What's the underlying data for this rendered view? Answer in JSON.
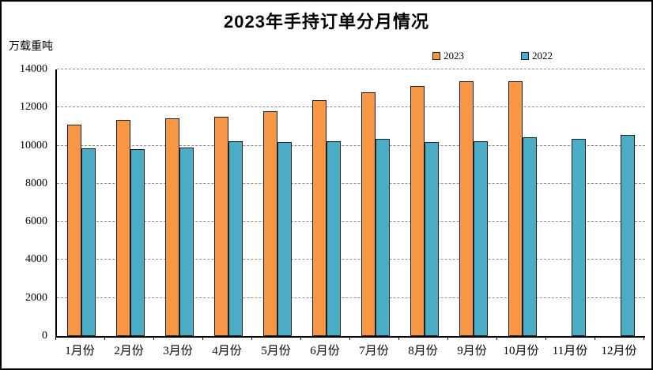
{
  "chart_data": {
    "type": "bar",
    "title": "2023年手持订单分月情况",
    "xlabel": "",
    "ylabel": "万载重吨",
    "ylim": [
      0,
      14000
    ],
    "ytick_interval": 2000,
    "grid": true,
    "legend_position": "top-right-inside",
    "categories": [
      "1月份",
      "2月份",
      "3月份",
      "4月份",
      "5月份",
      "6月份",
      "7月份",
      "8月份",
      "9月份",
      "10月份",
      "11月份",
      "12月份"
    ],
    "series": [
      {
        "name": "2023",
        "color": "#F79646",
        "values": [
          11100,
          11350,
          11450,
          11500,
          11800,
          12400,
          12800,
          13150,
          13400,
          13400,
          null,
          null
        ]
      },
      {
        "name": "2022",
        "color": "#4BACC6",
        "values": [
          9850,
          9800,
          9900,
          10250,
          10200,
          10250,
          10350,
          10200,
          10250,
          10450,
          10350,
          10550
        ]
      }
    ]
  },
  "style_colors": {
    "bar_border": "#1f1f1f",
    "gridline": "#8c8c8c",
    "axis": "#000000",
    "background": "#ffffff"
  }
}
